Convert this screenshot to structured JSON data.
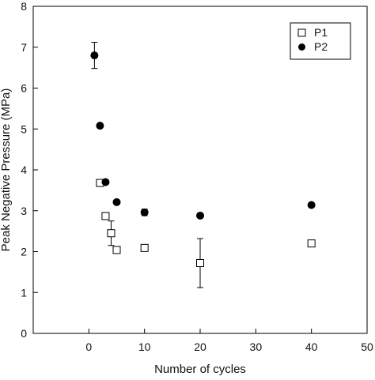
{
  "chart_data": {
    "type": "scatter",
    "xlabel": "Number of cycles",
    "ylabel": "Peak Negative Pressure (MPa)",
    "xlim": [
      -10,
      50
    ],
    "ylim": [
      0,
      8
    ],
    "xticks": [
      0,
      10,
      20,
      30,
      40,
      50
    ],
    "yticks": [
      0,
      1,
      2,
      3,
      4,
      5,
      6,
      7,
      8
    ],
    "grid": false,
    "legend_position": "top-right",
    "series": [
      {
        "name": "P1",
        "marker": "open-square",
        "color": "#000000",
        "points": [
          {
            "x": 2,
            "y": 3.68,
            "err": 0
          },
          {
            "x": 3,
            "y": 2.87,
            "err": 0.08
          },
          {
            "x": 4,
            "y": 2.45,
            "err": 0.3
          },
          {
            "x": 5,
            "y": 2.04,
            "err": 0
          },
          {
            "x": 10,
            "y": 2.09,
            "err": 0
          },
          {
            "x": 20,
            "y": 1.72,
            "err": 0.6
          },
          {
            "x": 40,
            "y": 2.2,
            "err": 0
          }
        ]
      },
      {
        "name": "P2",
        "marker": "filled-circle",
        "color": "#000000",
        "points": [
          {
            "x": 1,
            "y": 6.8,
            "err": 0.32
          },
          {
            "x": 2,
            "y": 5.08,
            "err": 0
          },
          {
            "x": 3,
            "y": 3.7,
            "err": 0
          },
          {
            "x": 5,
            "y": 3.21,
            "err": 0
          },
          {
            "x": 10,
            "y": 2.96,
            "err": 0.08
          },
          {
            "x": 20,
            "y": 2.88,
            "err": 0
          },
          {
            "x": 40,
            "y": 3.14,
            "err": 0
          }
        ]
      }
    ]
  }
}
